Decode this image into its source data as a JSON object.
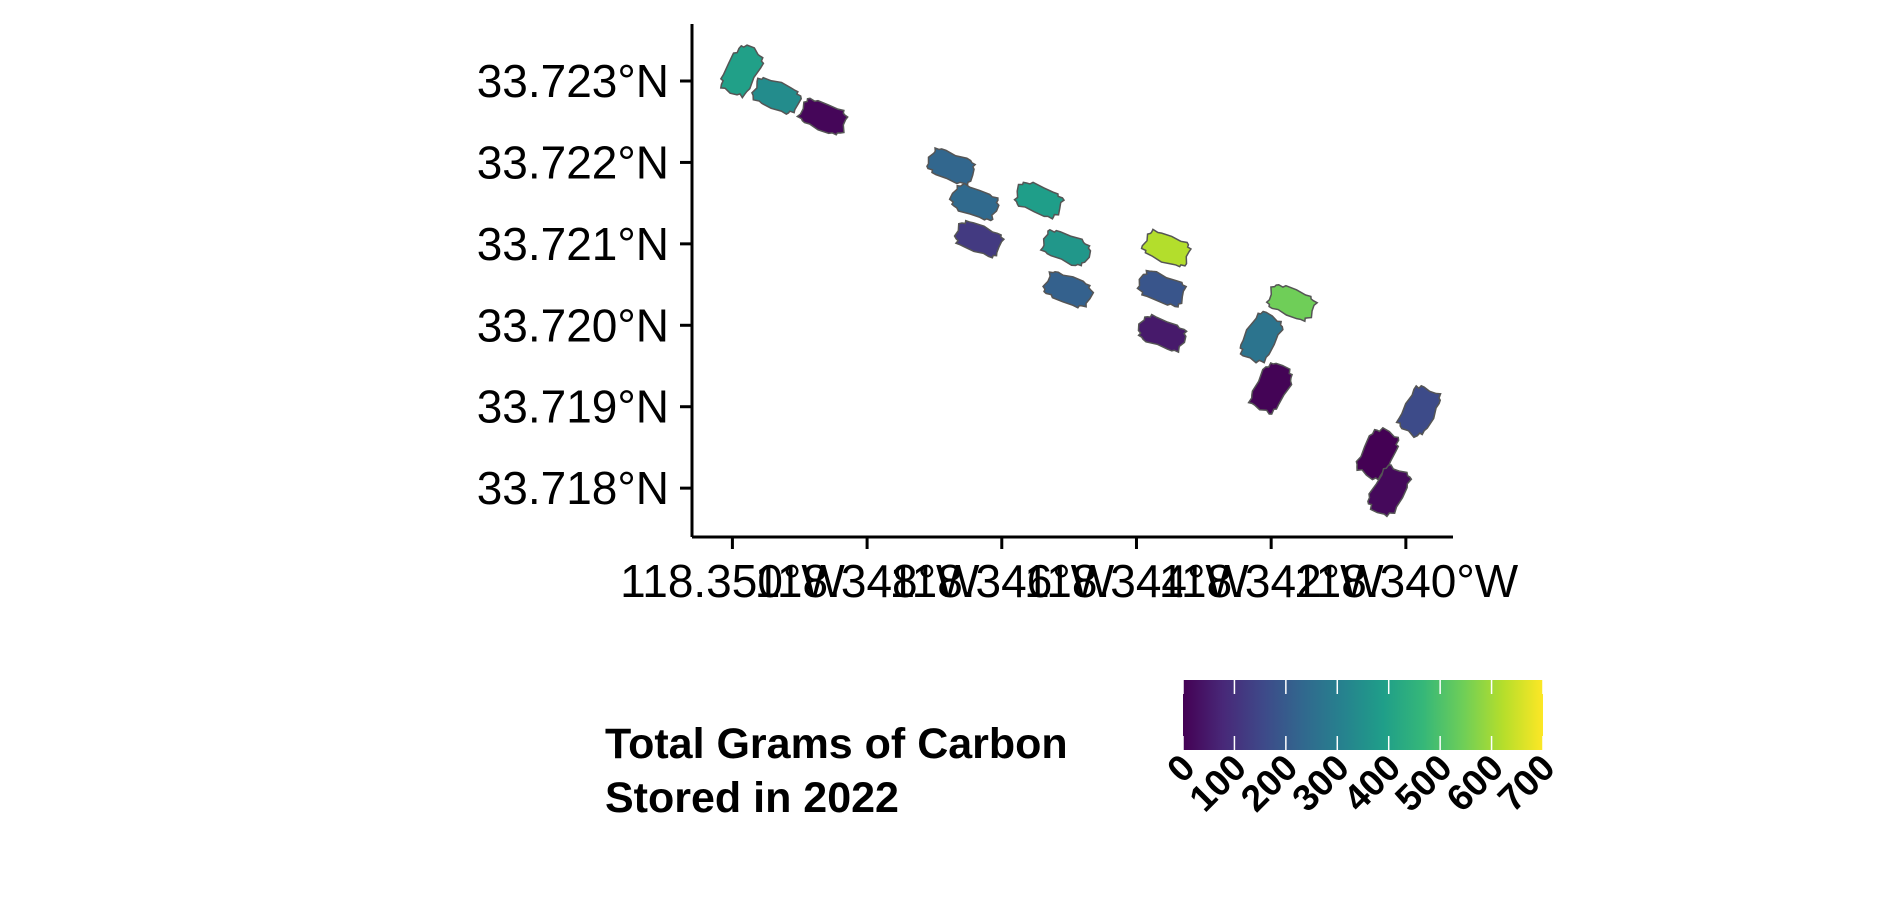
{
  "chart_data": {
    "type": "map",
    "x_ticks": [
      "118.350°W",
      "118.348°W",
      "118.346°W",
      "118.344°W",
      "118.342°W",
      "118.340°W"
    ],
    "y_ticks": [
      "33.723°N",
      "33.722°N",
      "33.721°N",
      "33.720°N",
      "33.719°N",
      "33.718°N"
    ],
    "xlim": [
      -118.3506,
      -118.3393
    ],
    "ylim": [
      33.7174,
      33.7237
    ],
    "x_tick_values": [
      -118.35,
      -118.348,
      -118.346,
      -118.344,
      -118.342,
      -118.34
    ],
    "y_tick_values": [
      33.723,
      33.722,
      33.721,
      33.72,
      33.719,
      33.718
    ],
    "legend": {
      "title_line1": "Total Grams of Carbon",
      "title_line2": "Stored in 2022",
      "min": 0,
      "max": 700,
      "labels": [
        "0",
        "100",
        "200",
        "300",
        "400",
        "500",
        "600",
        "700"
      ],
      "tick_values": [
        0,
        100,
        200,
        300,
        400,
        500,
        600,
        700
      ],
      "palette": [
        "#440154",
        "#482878",
        "#3e4989",
        "#31688e",
        "#26828e",
        "#1f9e89",
        "#35b779",
        "#6ece58",
        "#b5de2b",
        "#fde725"
      ]
    },
    "features": [
      {
        "lon": -118.34986,
        "lat": 33.72312,
        "value": 395
      },
      {
        "lon": -118.34935,
        "lat": 33.72282,
        "value": 340
      },
      {
        "lon": -118.34865,
        "lat": 33.72256,
        "value": 10
      },
      {
        "lon": -118.34675,
        "lat": 33.72195,
        "value": 230
      },
      {
        "lon": -118.3464,
        "lat": 33.72151,
        "value": 240
      },
      {
        "lon": -118.34634,
        "lat": 33.72106,
        "value": 120
      },
      {
        "lon": -118.34545,
        "lat": 33.72154,
        "value": 390
      },
      {
        "lon": -118.34505,
        "lat": 33.72095,
        "value": 370
      },
      {
        "lon": -118.34502,
        "lat": 33.72044,
        "value": 215
      },
      {
        "lon": -118.34355,
        "lat": 33.72094,
        "value": 620
      },
      {
        "lon": -118.34362,
        "lat": 33.72045,
        "value": 185
      },
      {
        "lon": -118.34362,
        "lat": 33.7199,
        "value": 50
      },
      {
        "lon": -118.34215,
        "lat": 33.71985,
        "value": 270
      },
      {
        "lon": -118.3417,
        "lat": 33.72028,
        "value": 545
      },
      {
        "lon": -118.342,
        "lat": 33.71923,
        "value": 5
      },
      {
        "lon": -118.34042,
        "lat": 33.71842,
        "value": 0
      },
      {
        "lon": -118.3398,
        "lat": 33.71895,
        "value": 160
      },
      {
        "lon": -118.34025,
        "lat": 33.71797,
        "value": 15
      }
    ]
  }
}
